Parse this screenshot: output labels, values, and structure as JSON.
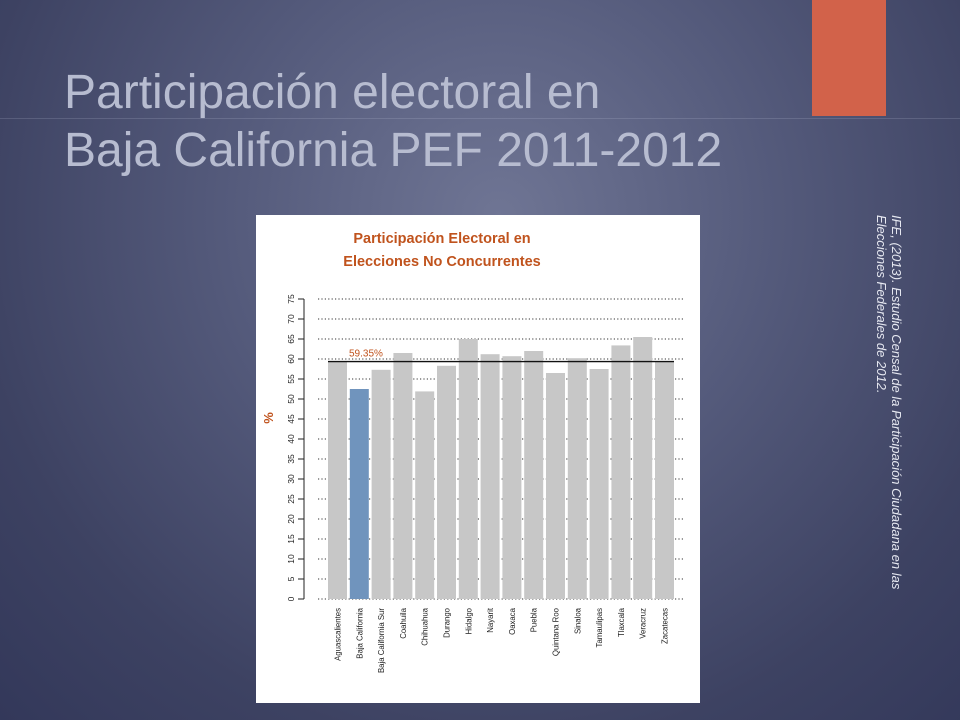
{
  "slide": {
    "title_line1": "Participación electoral en",
    "title_line2": "Baja California PEF 2011-2012",
    "citation_line1": "IFE, (2013). Estudio Censal de la Participación Ciudadana en las",
    "citation_line2": "Elecciones Federales de 2012.",
    "colors": {
      "accent": "#d2624a",
      "background": "#4a4f70",
      "title": "#b7bcd0"
    }
  },
  "chart_data": {
    "type": "bar",
    "title_line1": "Participación Electoral en",
    "title_line2": "Elecciones No Concurrentes",
    "ylabel": "%",
    "xlabel": "",
    "ylim": [
      0,
      75
    ],
    "yticks": [
      0,
      5,
      10,
      15,
      20,
      25,
      30,
      35,
      40,
      45,
      50,
      55,
      60,
      65,
      70,
      75
    ],
    "grid": true,
    "categories": [
      "Aguascalientes",
      "Baja California",
      "Baja California Sur",
      "Coahuila",
      "Chihuahua",
      "Durango",
      "Hidalgo",
      "Nayarit",
      "Oaxaca",
      "Puebla",
      "Quintana Roo",
      "Sinaloa",
      "Tamaulipas",
      "Tlaxcala",
      "Veracruz",
      "Zacatecas"
    ],
    "values": [
      59.3,
      52.5,
      57.3,
      61.5,
      51.9,
      58.3,
      65.0,
      61.2,
      60.7,
      62.0,
      56.5,
      60.2,
      57.5,
      63.4,
      65.5,
      59.3
    ],
    "highlight": "Baja California",
    "reference_line": {
      "value": 59.35,
      "label": "59.35%"
    },
    "colors": {
      "bar": "#c7c7c7",
      "highlight": "#7094bd",
      "title": "#c0531d",
      "ylabel": "#c0531d",
      "reference_label": "#c0531d"
    }
  }
}
